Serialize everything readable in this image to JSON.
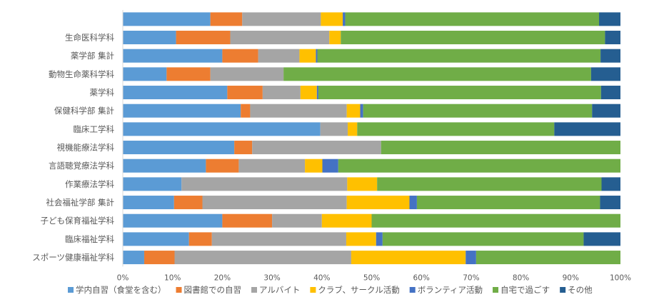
{
  "chart_data": {
    "type": "bar",
    "orientation": "horizontal",
    "stacked": "percent",
    "categories": [
      "",
      "生命医科学科",
      "薬学部 集計",
      "動物生命薬科学科",
      "薬学科",
      "保健科学部 集計",
      "臨床工学科",
      "視機能療法学科",
      "言語聴覚療法学科",
      "作業療法学科",
      "社会福祉学部 集計",
      "子ども保育福祉学科",
      "臨床福祉学科",
      "スポーツ健康福祉学科"
    ],
    "series": [
      {
        "name": "学内自習（食堂を含む）",
        "color": "#5B9BD5",
        "values": [
          17.6,
          10.7,
          20.0,
          8.8,
          21.0,
          23.7,
          39.7,
          22.4,
          16.7,
          11.8,
          10.3,
          20.0,
          13.3,
          4.3
        ]
      },
      {
        "name": "図書館での自習",
        "color": "#ED7D31",
        "values": [
          6.4,
          10.9,
          7.2,
          8.8,
          7.1,
          1.9,
          0.0,
          3.6,
          6.6,
          0.0,
          5.7,
          10.0,
          4.6,
          6.1
        ]
      },
      {
        "name": "アルバイト",
        "color": "#A5A5A5",
        "values": [
          15.8,
          19.9,
          8.3,
          14.7,
          7.6,
          19.4,
          5.5,
          25.9,
          13.3,
          33.3,
          29.0,
          10.0,
          27.0,
          35.5
        ]
      },
      {
        "name": "クラブ、サークル活動",
        "color": "#FFC000",
        "values": [
          4.4,
          2.3,
          3.3,
          0.0,
          3.3,
          2.7,
          1.9,
          0.0,
          3.5,
          6.0,
          12.6,
          10.0,
          6.0,
          23.0
        ]
      },
      {
        "name": "ボランティア活動",
        "color": "#4472C4",
        "values": [
          0.5,
          0.0,
          0.3,
          0.0,
          0.3,
          0.6,
          0.0,
          0.0,
          3.2,
          0.0,
          1.5,
          0.0,
          1.3,
          2.1
        ]
      },
      {
        "name": "自宅で過ごす",
        "color": "#70AD47",
        "values": [
          51.0,
          53.1,
          56.9,
          61.8,
          56.8,
          46.0,
          39.6,
          48.1,
          56.7,
          45.1,
          36.8,
          50.0,
          40.4,
          29.0
        ]
      },
      {
        "name": "その他",
        "color": "#255E91",
        "values": [
          4.3,
          3.1,
          4.0,
          5.9,
          3.9,
          5.7,
          13.3,
          0.0,
          0.0,
          3.8,
          4.1,
          0.0,
          7.4,
          0.0
        ]
      }
    ],
    "x_ticks": [
      "0%",
      "10%",
      "20%",
      "30%",
      "40%",
      "50%",
      "60%",
      "70%",
      "80%",
      "90%",
      "100%"
    ],
    "xlim": [
      0,
      100
    ],
    "grid": false,
    "legend_position": "bottom"
  }
}
